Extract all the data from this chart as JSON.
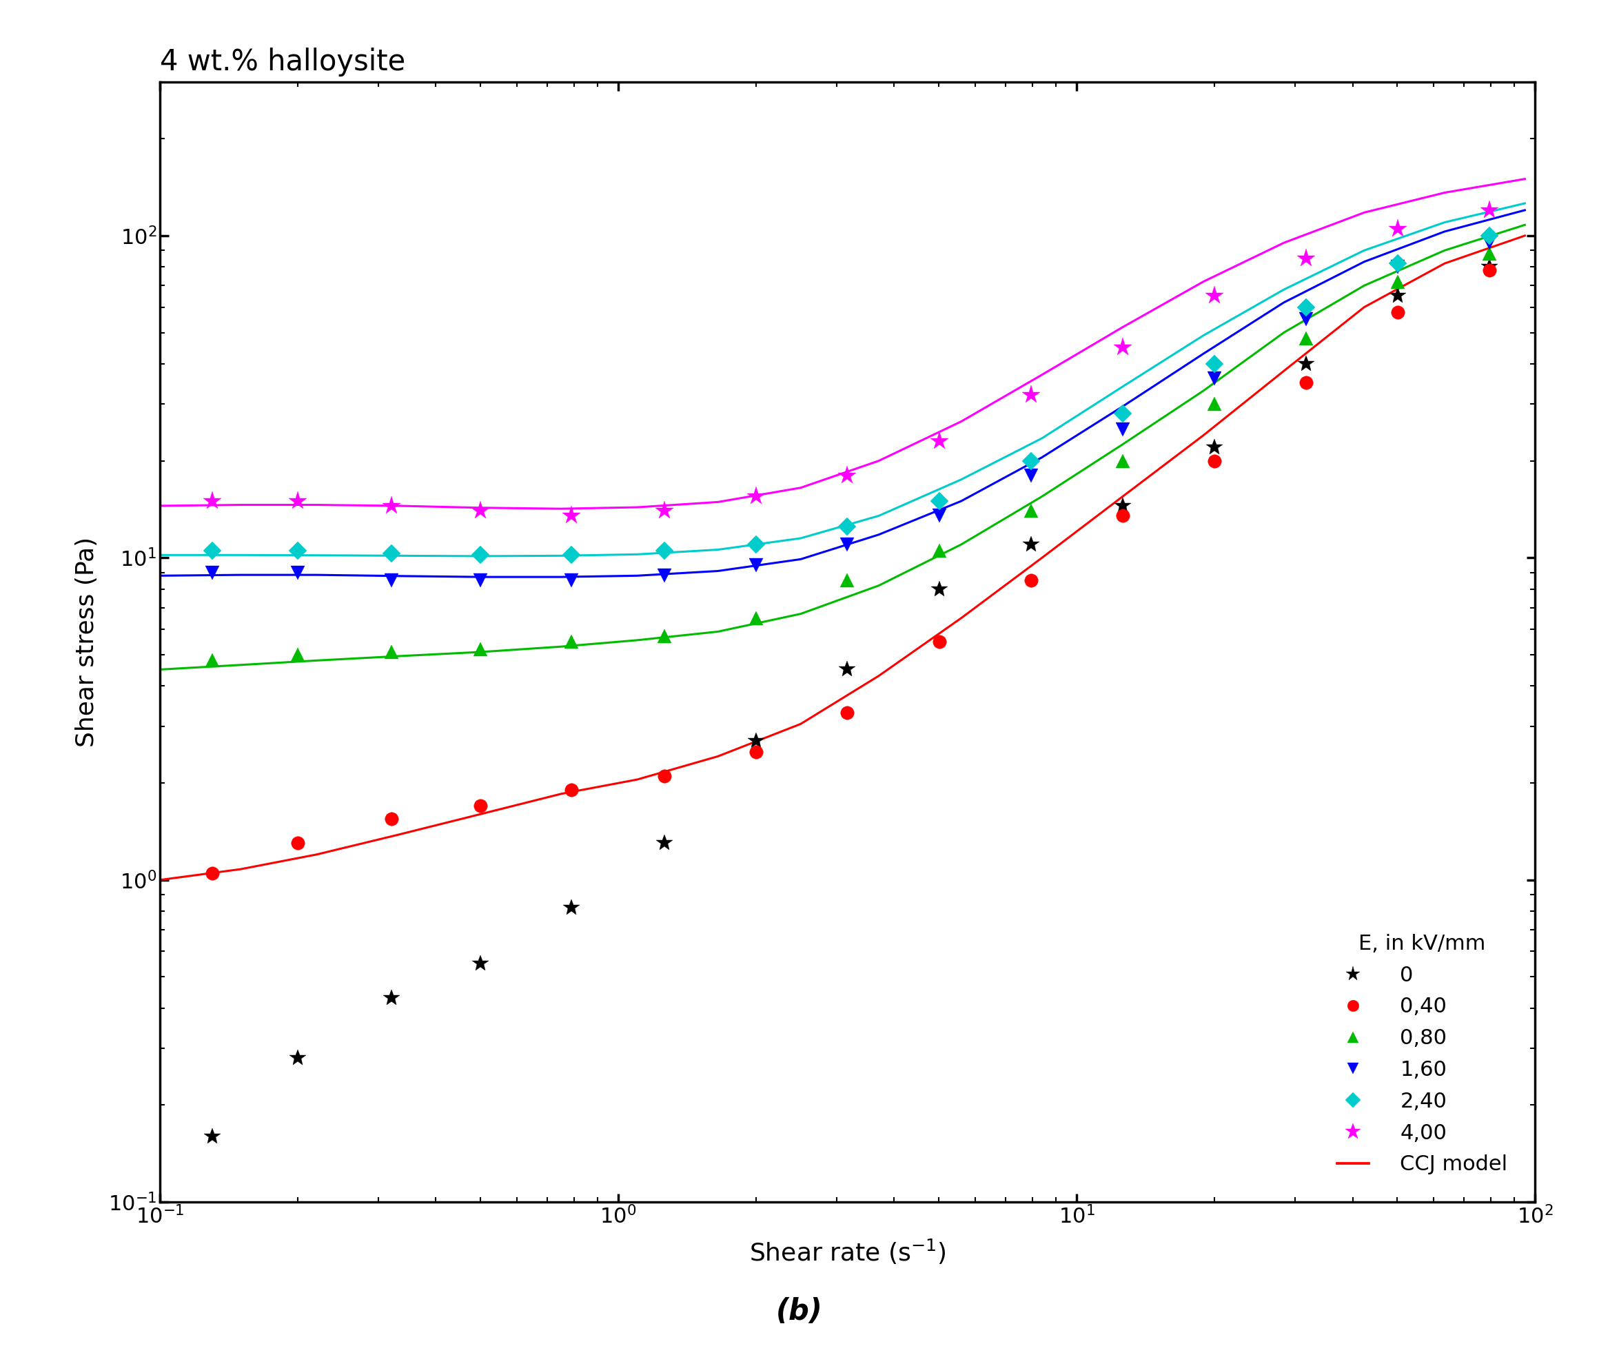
{
  "title": "4 wt.% halloysite",
  "xlabel": "Shear rate (s$^{-1}$)",
  "ylabel": "Shear stress (Pa)",
  "bottom_label": "(b)",
  "xlim": [
    0.1,
    100
  ],
  "ylim": [
    0.1,
    300
  ],
  "legend_title": "E, in kV/mm",
  "ccj_label": "CCJ model",
  "series": [
    {
      "label": "0",
      "color": "black",
      "line_color": "red",
      "marker": "*",
      "markersize": 18,
      "data_x": [
        0.13,
        0.2,
        0.32,
        0.5,
        0.79,
        1.26,
        2.0,
        3.16,
        5.01,
        7.94,
        12.59,
        19.95,
        31.62,
        50.12,
        79.43
      ],
      "data_y": [
        0.16,
        0.28,
        0.43,
        0.55,
        0.82,
        1.3,
        2.7,
        4.5,
        8.0,
        11.0,
        14.5,
        22.0,
        40.0,
        65.0,
        80.0
      ],
      "has_fit": false,
      "fit_x": [],
      "fit_y": []
    },
    {
      "label": "0,40",
      "color": "#ff0000",
      "line_color": "#ff0000",
      "marker": "o",
      "markersize": 14,
      "data_x": [
        0.13,
        0.2,
        0.32,
        0.5,
        0.79,
        1.26,
        2.0,
        3.16,
        5.01,
        7.94,
        12.59,
        19.95,
        31.62,
        50.12,
        79.43
      ],
      "data_y": [
        1.05,
        1.3,
        1.55,
        1.7,
        1.9,
        2.1,
        2.5,
        3.3,
        5.5,
        8.5,
        13.5,
        20.0,
        35.0,
        58.0,
        78.0
      ],
      "has_fit": true,
      "fit_x": [
        0.1,
        0.15,
        0.22,
        0.33,
        0.5,
        0.75,
        1.1,
        1.65,
        2.5,
        3.7,
        5.6,
        8.4,
        12.6,
        18.9,
        28.3,
        42.4,
        63.5,
        95.0
      ],
      "fit_y": [
        1.0,
        1.08,
        1.2,
        1.38,
        1.6,
        1.85,
        2.05,
        2.42,
        3.05,
        4.3,
        6.5,
        10.0,
        15.5,
        24.0,
        38.0,
        60.0,
        82.0,
        100.0
      ]
    },
    {
      "label": "0,80",
      "color": "#00bb00",
      "line_color": "#00bb00",
      "marker": "^",
      "markersize": 14,
      "data_x": [
        0.13,
        0.2,
        0.32,
        0.5,
        0.79,
        1.26,
        2.0,
        3.16,
        5.01,
        7.94,
        12.59,
        19.95,
        31.62,
        50.12,
        79.43
      ],
      "data_y": [
        4.8,
        5.0,
        5.1,
        5.2,
        5.5,
        5.7,
        6.5,
        8.5,
        10.5,
        14.0,
        20.0,
        30.0,
        48.0,
        72.0,
        88.0
      ],
      "has_fit": true,
      "fit_x": [
        0.1,
        0.15,
        0.22,
        0.33,
        0.5,
        0.75,
        1.1,
        1.65,
        2.5,
        3.7,
        5.6,
        8.4,
        12.6,
        18.9,
        28.3,
        42.4,
        63.5,
        95.0
      ],
      "fit_y": [
        4.5,
        4.65,
        4.8,
        4.95,
        5.1,
        5.3,
        5.55,
        5.9,
        6.7,
        8.2,
        11.0,
        15.5,
        22.5,
        33.0,
        50.0,
        70.0,
        90.0,
        108.0
      ]
    },
    {
      "label": "1,60",
      "color": "#0000ff",
      "line_color": "#0000ff",
      "marker": "v",
      "markersize": 14,
      "data_x": [
        0.13,
        0.2,
        0.32,
        0.5,
        0.79,
        1.26,
        2.0,
        3.16,
        5.01,
        7.94,
        12.59,
        19.95,
        31.62,
        50.12,
        79.43
      ],
      "data_y": [
        9.0,
        9.0,
        8.5,
        8.5,
        8.5,
        8.8,
        9.5,
        11.0,
        13.5,
        18.0,
        25.0,
        36.0,
        55.0,
        80.0,
        95.0
      ],
      "has_fit": true,
      "fit_x": [
        0.1,
        0.15,
        0.22,
        0.33,
        0.5,
        0.75,
        1.1,
        1.65,
        2.5,
        3.7,
        5.6,
        8.4,
        12.6,
        18.9,
        28.3,
        42.4,
        63.5,
        95.0
      ],
      "fit_y": [
        8.8,
        8.85,
        8.85,
        8.78,
        8.72,
        8.72,
        8.8,
        9.1,
        9.9,
        11.8,
        15.0,
        20.5,
        29.5,
        43.0,
        62.0,
        83.0,
        103.0,
        120.0
      ]
    },
    {
      "label": "2,40",
      "color": "#00cccc",
      "line_color": "#00cccc",
      "marker": "D",
      "markersize": 13,
      "data_x": [
        0.13,
        0.2,
        0.32,
        0.5,
        0.79,
        1.26,
        2.0,
        3.16,
        5.01,
        7.94,
        12.59,
        19.95,
        31.62,
        50.12,
        79.43
      ],
      "data_y": [
        10.5,
        10.5,
        10.3,
        10.2,
        10.2,
        10.5,
        11.0,
        12.5,
        15.0,
        20.0,
        28.0,
        40.0,
        60.0,
        82.0,
        100.0
      ],
      "has_fit": true,
      "fit_x": [
        0.1,
        0.15,
        0.22,
        0.33,
        0.5,
        0.75,
        1.1,
        1.65,
        2.5,
        3.7,
        5.6,
        8.4,
        12.6,
        18.9,
        28.3,
        42.4,
        63.5,
        95.0
      ],
      "fit_y": [
        10.2,
        10.2,
        10.18,
        10.15,
        10.12,
        10.15,
        10.25,
        10.6,
        11.5,
        13.5,
        17.5,
        23.5,
        34.0,
        49.0,
        68.0,
        90.0,
        110.0,
        126.0
      ]
    },
    {
      "label": "4,00",
      "color": "#ff00ff",
      "line_color": "#ff00ff",
      "marker": "*",
      "markersize": 20,
      "data_x": [
        0.13,
        0.2,
        0.32,
        0.5,
        0.79,
        1.26,
        2.0,
        3.16,
        5.01,
        7.94,
        12.59,
        19.95,
        31.62,
        50.12,
        79.43
      ],
      "data_y": [
        15.0,
        15.0,
        14.5,
        14.0,
        13.5,
        14.0,
        15.5,
        18.0,
        23.0,
        32.0,
        45.0,
        65.0,
        85.0,
        105.0,
        120.0
      ],
      "has_fit": true,
      "fit_x": [
        0.1,
        0.15,
        0.22,
        0.33,
        0.5,
        0.75,
        1.1,
        1.65,
        2.5,
        3.7,
        5.6,
        8.4,
        12.6,
        18.9,
        28.3,
        42.4,
        63.5,
        95.0
      ],
      "fit_y": [
        14.5,
        14.6,
        14.6,
        14.5,
        14.3,
        14.2,
        14.35,
        14.9,
        16.5,
        20.0,
        26.5,
        37.0,
        52.0,
        72.0,
        95.0,
        118.0,
        136.0,
        150.0
      ]
    }
  ],
  "title_fontsize": 30,
  "label_fontsize": 26,
  "tick_fontsize": 22,
  "legend_fontsize": 22,
  "legend_title_fontsize": 22,
  "linewidth": 2.2
}
